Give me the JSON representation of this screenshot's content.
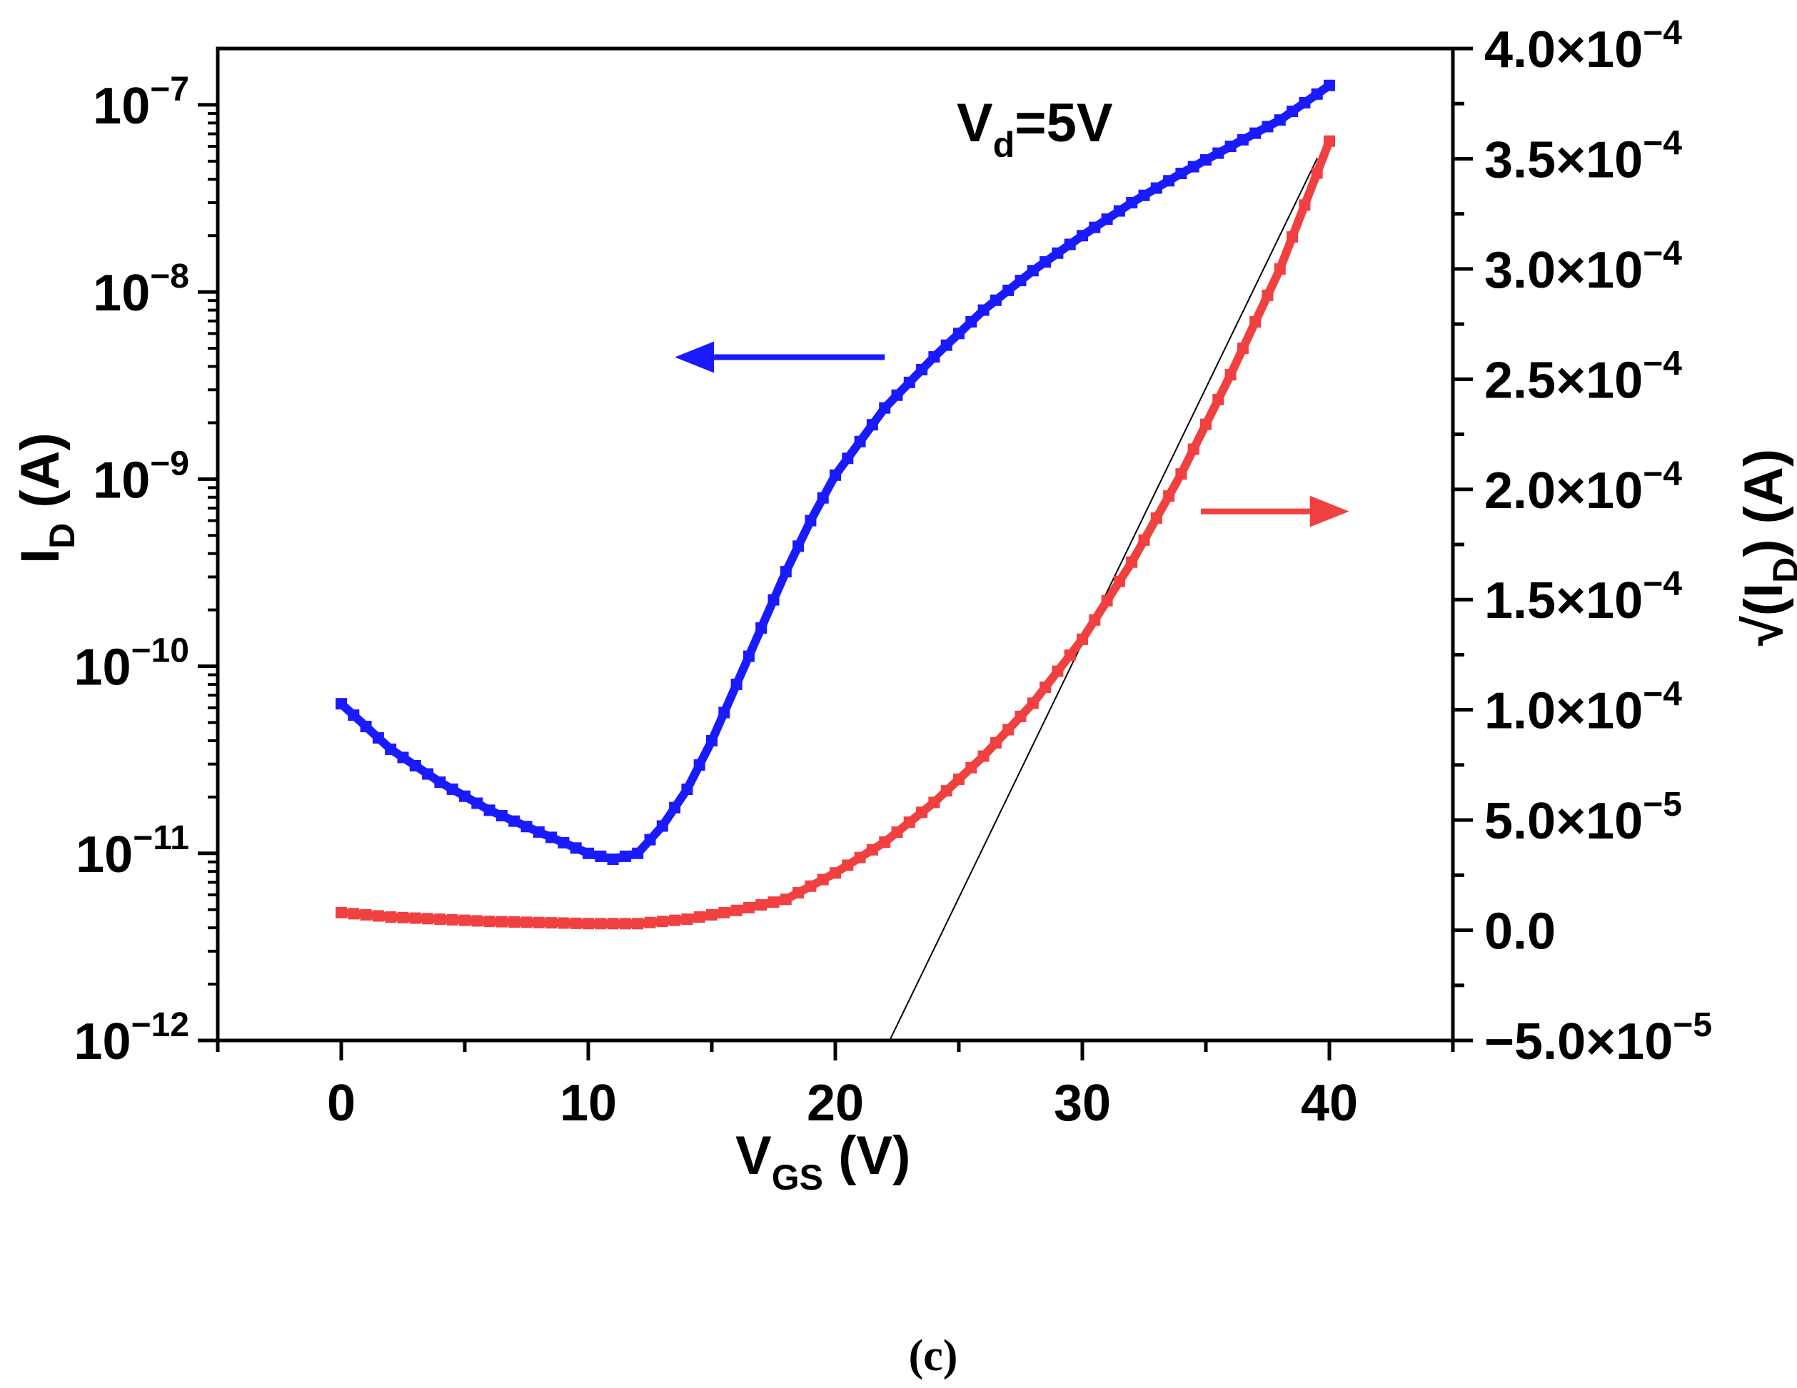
{
  "caption": "(c)",
  "chart_data": {
    "type": "line",
    "title": "",
    "annotation": {
      "main": "V",
      "sub": "d",
      "rest": "=5V"
    },
    "xlabel": {
      "main": "V",
      "sub": "GS",
      "rest": " (V)"
    },
    "ylabel_left": {
      "main": "I",
      "sub": "D",
      "rest": " (A)"
    },
    "ylabel_right": {
      "prefix": "√(I",
      "sub": "D",
      "rest": ") (A)"
    },
    "xlim": [
      -5,
      45
    ],
    "xticks": [
      0,
      10,
      20,
      30,
      40
    ],
    "xticklabels": [
      "0",
      "10",
      "20",
      "30",
      "40"
    ],
    "ylim_left": [
      1e-12,
      2e-07
    ],
    "yscale_left": "log",
    "yticks_left": [
      {
        "base": "10",
        "exp": "−12",
        "value": 1e-12
      },
      {
        "base": "10",
        "exp": "−11",
        "value": 1e-11
      },
      {
        "base": "10",
        "exp": "−10",
        "value": 1e-10
      },
      {
        "base": "10",
        "exp": "−9",
        "value": 1e-09
      },
      {
        "base": "10",
        "exp": "−8",
        "value": 1e-08
      },
      {
        "base": "10",
        "exp": "−7",
        "value": 1e-07
      }
    ],
    "ylim_right": [
      -5e-05,
      0.0004
    ],
    "yticks_right": [
      {
        "mant": "−5.0×10",
        "exp": "−5",
        "value": -5e-05
      },
      {
        "mant": "0.0",
        "exp": "",
        "value": 0
      },
      {
        "mant": "5.0×10",
        "exp": "−5",
        "value": 5e-05
      },
      {
        "mant": "1.0×10",
        "exp": "−4",
        "value": 0.0001
      },
      {
        "mant": "1.5×10",
        "exp": "−4",
        "value": 0.00015
      },
      {
        "mant": "2.0×10",
        "exp": "−4",
        "value": 0.0002
      },
      {
        "mant": "2.5×10",
        "exp": "−4",
        "value": 0.00025
      },
      {
        "mant": "3.0×10",
        "exp": "−4",
        "value": 0.0003
      },
      {
        "mant": "3.5×10",
        "exp": "−4",
        "value": 0.00035
      },
      {
        "mant": "4.0×10",
        "exp": "−4",
        "value": 0.0004
      }
    ],
    "series": [
      {
        "name": "I_D (log, left axis)",
        "axis": "left",
        "color": "#1a1aff",
        "x": [
          0,
          2,
          4,
          6,
          8,
          10,
          11,
          12,
          13,
          14,
          15,
          16,
          17,
          18,
          19,
          20,
          22,
          24,
          26,
          28,
          30,
          32,
          34,
          36,
          38,
          40
        ],
        "values": [
          6.3e-11,
          3.6e-11,
          2.4e-11,
          1.7e-11,
          1.3e-11,
          1e-11,
          9.3e-12,
          1e-11,
          1.4e-11,
          2.2e-11,
          4e-11,
          8e-11,
          1.6e-10,
          3.2e-10,
          6e-10,
          1.05e-09,
          2.4e-09,
          4.5e-09,
          8e-09,
          1.3e-08,
          2e-08,
          3e-08,
          4.3e-08,
          6e-08,
          8.3e-08,
          1.27e-07
        ]
      },
      {
        "name": "sqrt(I_D) (linear, right axis)",
        "axis": "right",
        "color": "#f04040",
        "x": [
          0,
          2,
          4,
          6,
          8,
          10,
          12,
          14,
          16,
          18,
          20,
          22,
          24,
          26,
          28,
          30,
          32,
          34,
          36,
          38,
          40
        ],
        "values": [
          8e-06,
          6e-06,
          5e-06,
          4e-06,
          3.5e-06,
          3e-06,
          3e-06,
          5e-06,
          9e-06,
          1.4e-05,
          2.6e-05,
          4e-05,
          5.8e-05,
          7.9e-05,
          0.000103,
          0.000132,
          0.000167,
          0.000207,
          0.000252,
          0.0003,
          0.000358
        ]
      },
      {
        "name": "linear fit",
        "axis": "right",
        "color": "#000000",
        "x": [
          22.2,
          39.5
        ],
        "values": [
          -5e-05,
          0.00035
        ]
      }
    ],
    "arrows": [
      {
        "name": "left-axis-arrow",
        "direction": "left",
        "color": "#1a1aff",
        "x_from": 22,
        "x_to": 13.5,
        "y_right": 0.00026
      },
      {
        "name": "right-axis-arrow",
        "direction": "right",
        "color": "#f04040",
        "x_from": 34.8,
        "x_to": 40.8,
        "y_right": 0.00019
      }
    ]
  }
}
